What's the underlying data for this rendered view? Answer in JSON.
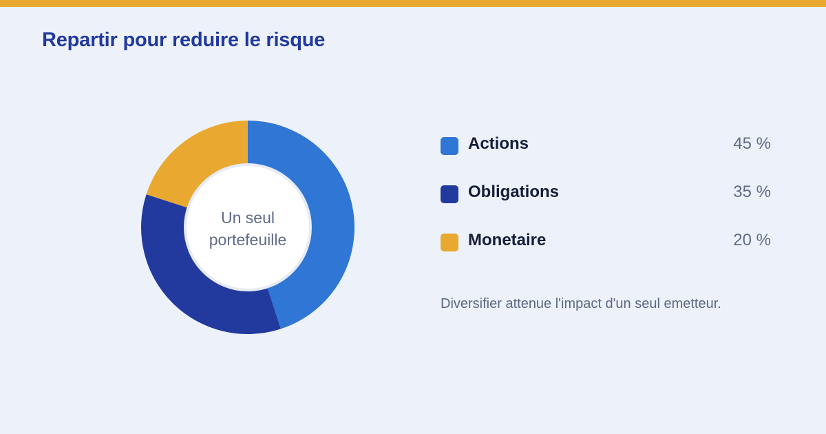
{
  "title": "Repartir pour reduire le risque",
  "colors": {
    "accent": "#e9a931",
    "title": "#22399e",
    "background": "#edf2fa"
  },
  "chart_data": {
    "type": "pie",
    "variant": "donut",
    "center_label": "Un seul portefeuille",
    "unit": "%",
    "categories": [
      "Actions",
      "Obligations",
      "Monetaire"
    ],
    "values": [
      45,
      35,
      20
    ],
    "value_labels": [
      "45 %",
      "35 %",
      "20 %"
    ],
    "colors": [
      "#2f76d5",
      "#22399e",
      "#e9a931"
    ],
    "legend_position": "right"
  },
  "note": "Diversifier attenue l'impact d'un seul emetteur."
}
